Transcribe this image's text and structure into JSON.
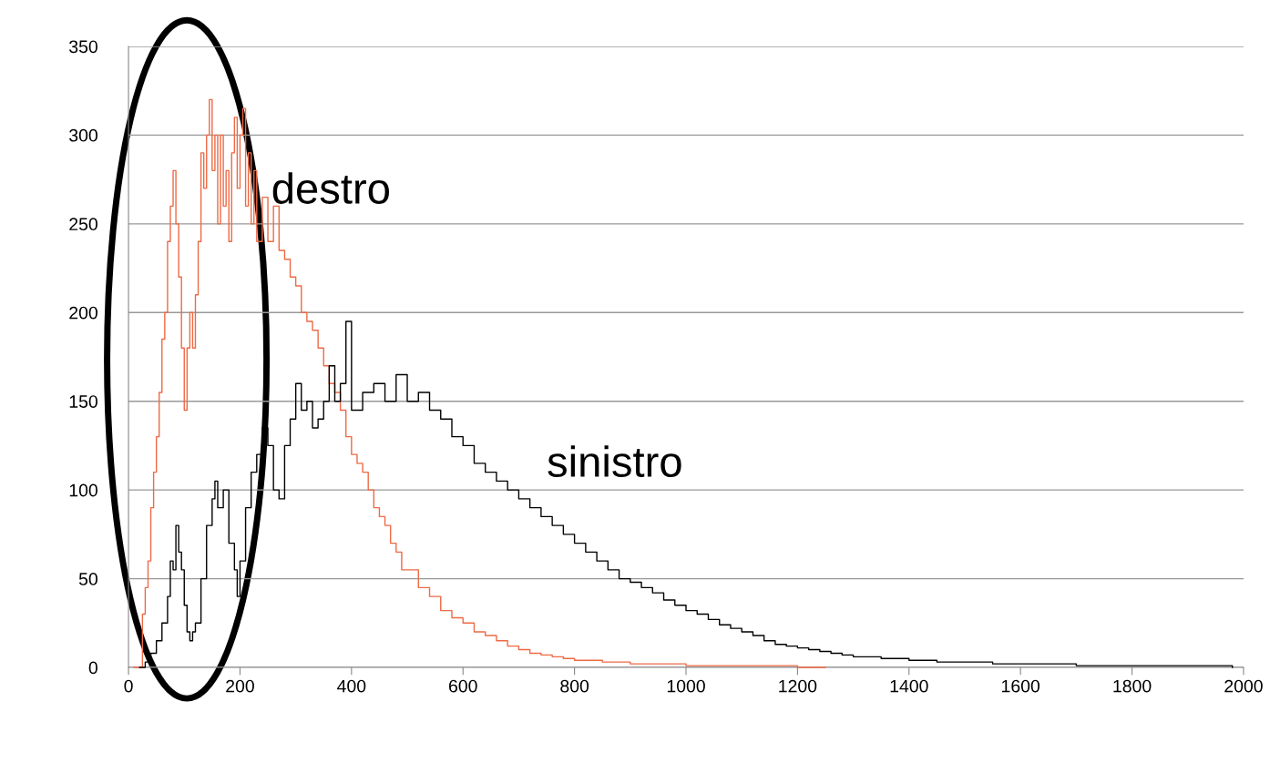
{
  "chart_data": {
    "type": "step",
    "xlim": [
      0,
      2000
    ],
    "ylim": [
      0,
      350
    ],
    "xticks": [
      0,
      200,
      400,
      600,
      800,
      1000,
      1200,
      1400,
      1600,
      1800,
      2000
    ],
    "yticks": [
      0,
      50,
      100,
      150,
      200,
      250,
      300,
      350
    ],
    "grid": "y",
    "legend": false,
    "series": [
      {
        "name": "destro",
        "color": "#ee6a45",
        "x": [
          10,
          20,
          25,
          30,
          35,
          40,
          45,
          50,
          55,
          60,
          65,
          70,
          75,
          80,
          85,
          90,
          95,
          100,
          105,
          110,
          115,
          120,
          125,
          130,
          135,
          140,
          145,
          150,
          155,
          160,
          165,
          170,
          175,
          180,
          185,
          190,
          195,
          200,
          205,
          210,
          215,
          220,
          225,
          230,
          240,
          250,
          260,
          270,
          280,
          290,
          300,
          310,
          320,
          330,
          340,
          350,
          360,
          370,
          380,
          390,
          400,
          410,
          420,
          430,
          440,
          450,
          460,
          470,
          480,
          490,
          500,
          520,
          540,
          560,
          580,
          600,
          620,
          640,
          660,
          680,
          700,
          720,
          740,
          760,
          780,
          800,
          850,
          900,
          1000,
          1100,
          1200,
          1250
        ],
        "values": [
          0,
          0,
          30,
          45,
          60,
          90,
          110,
          130,
          155,
          185,
          200,
          240,
          260,
          280,
          250,
          220,
          180,
          145,
          180,
          200,
          180,
          210,
          240,
          290,
          270,
          300,
          320,
          280,
          300,
          250,
          300,
          260,
          280,
          240,
          290,
          310,
          270,
          300,
          315,
          260,
          290,
          250,
          280,
          240,
          265,
          240,
          260,
          235,
          230,
          220,
          215,
          200,
          195,
          190,
          180,
          170,
          160,
          155,
          145,
          130,
          120,
          115,
          110,
          100,
          90,
          85,
          80,
          70,
          65,
          55,
          55,
          45,
          40,
          32,
          28,
          25,
          20,
          18,
          15,
          12,
          10,
          8,
          7,
          6,
          5,
          4,
          3,
          2,
          1,
          1,
          0,
          0
        ]
      },
      {
        "name": "sinistro",
        "color": "#000000",
        "x": [
          20,
          30,
          40,
          50,
          60,
          70,
          75,
          80,
          85,
          90,
          95,
          100,
          105,
          110,
          115,
          120,
          130,
          140,
          150,
          155,
          160,
          170,
          180,
          190,
          195,
          200,
          210,
          220,
          230,
          240,
          250,
          260,
          270,
          280,
          290,
          300,
          310,
          320,
          330,
          340,
          350,
          360,
          370,
          380,
          390,
          400,
          420,
          440,
          460,
          480,
          500,
          520,
          540,
          560,
          580,
          600,
          620,
          640,
          660,
          680,
          700,
          720,
          740,
          760,
          780,
          800,
          820,
          840,
          860,
          880,
          900,
          920,
          940,
          960,
          980,
          1000,
          1020,
          1040,
          1060,
          1080,
          1100,
          1120,
          1140,
          1160,
          1180,
          1200,
          1220,
          1240,
          1260,
          1280,
          1300,
          1350,
          1400,
          1450,
          1500,
          1550,
          1600,
          1700,
          1800,
          1900,
          1980
        ],
        "values": [
          0,
          3,
          8,
          15,
          25,
          40,
          60,
          55,
          80,
          65,
          55,
          35,
          20,
          15,
          20,
          25,
          50,
          80,
          95,
          105,
          90,
          100,
          70,
          55,
          40,
          60,
          90,
          110,
          120,
          135,
          125,
          100,
          95,
          125,
          140,
          160,
          145,
          150,
          135,
          140,
          150,
          170,
          150,
          160,
          195,
          145,
          155,
          160,
          150,
          165,
          150,
          155,
          145,
          140,
          130,
          125,
          115,
          110,
          105,
          100,
          95,
          90,
          85,
          80,
          75,
          70,
          65,
          60,
          55,
          50,
          48,
          45,
          42,
          38,
          35,
          32,
          30,
          27,
          24,
          22,
          20,
          18,
          15,
          13,
          12,
          11,
          10,
          9,
          8,
          7,
          6,
          5,
          4,
          3,
          3,
          2,
          2,
          1,
          1,
          1,
          0
        ]
      }
    ]
  }
}
